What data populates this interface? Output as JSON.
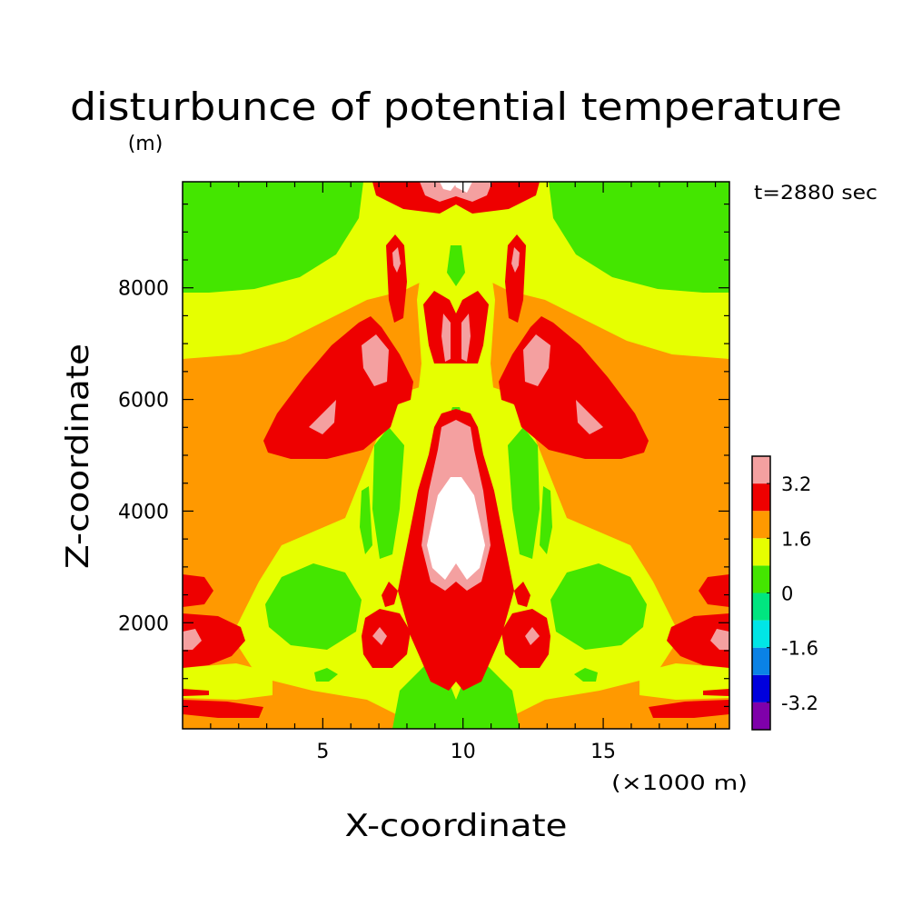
{
  "chart_data": {
    "type": "heatmap",
    "title": "disturbunce of potential temperature",
    "title_unit": "(m)",
    "time_label": "t=2880 sec",
    "xlabel": "X-coordinate",
    "x_unit_label": "(×1000 m)",
    "ylabel": "Z-coordinate",
    "xlim": [
      0,
      19.5
    ],
    "ylim": [
      100,
      9900
    ],
    "x_ticks": [
      {
        "value": 5,
        "label": "5"
      },
      {
        "value": 10,
        "label": "10"
      },
      {
        "value": 15,
        "label": "15"
      }
    ],
    "y_ticks": [
      {
        "value": 2000,
        "label": "2000"
      },
      {
        "value": 4000,
        "label": "4000"
      },
      {
        "value": 6000,
        "label": "6000"
      },
      {
        "value": 8000,
        "label": "8000"
      }
    ],
    "colorbar": {
      "levels": [
        -4.0,
        -3.2,
        -2.4,
        -1.6,
        -0.8,
        0,
        0.8,
        1.6,
        2.4,
        3.2,
        4.0
      ],
      "colors": [
        "#7f00aa",
        "#0000dd",
        "#0a82e6",
        "#00e6e6",
        "#00e680",
        "#44e600",
        "#e6ff00",
        "#ff9900",
        "#ee0000",
        "#f4a0a0"
      ],
      "tick_labels": [
        {
          "value": -3.2,
          "label": "-3.2"
        },
        {
          "value": -1.6,
          "label": "-1.6"
        },
        {
          "value": 0,
          "label": "0"
        },
        {
          "value": 1.6,
          "label": "1.6"
        },
        {
          "value": 3.2,
          "label": "3.2"
        }
      ],
      "above_max_color": "#ffffff"
    },
    "background_value": 2.0,
    "field_features": [
      {
        "region": "upper-left corner",
        "value": 0.4
      },
      {
        "region": "upper-right corner",
        "value": 0.4
      },
      {
        "region": "left lobe x 3.5-8.5 z 5200-7200",
        "value": 2.8
      },
      {
        "region": "right lobe x 11.5-16.5 z 5200-7200",
        "value": 2.8
      },
      {
        "region": "central column x 9.3-10.9 z 2000-5700",
        "value": 2.8
      },
      {
        "region": "central core x 9.8-10.5 z 3000-4400",
        "value": 4.2
      },
      {
        "region": "left low cell x 7.5 z 1700",
        "value": 2.8
      },
      {
        "region": "right low cell x 12.7 z 1700",
        "value": 2.8
      },
      {
        "region": "left mid cell x 4.8 z 2400",
        "value": 0.4
      },
      {
        "region": "right mid cell x 15.2 z 2400",
        "value": 0.4
      },
      {
        "region": "bottom centre x 10 z 100-900",
        "value": 0.4
      },
      {
        "region": "left edge z 1700",
        "value": 3.6
      },
      {
        "region": "right edge z 1700",
        "value": 3.6
      }
    ]
  }
}
